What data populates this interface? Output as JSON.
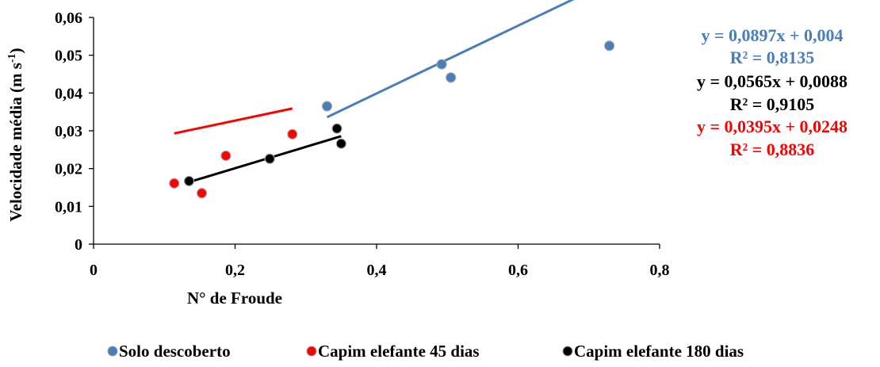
{
  "chart_data": {
    "type": "scatter",
    "xlabel": "N° de Froude",
    "ylabel": "Velocidade média (m s-1)",
    "ylabel_main": "Velocidade média (m s",
    "ylabel_sup": "-1",
    "ylabel_end": ")",
    "xlim": [
      0,
      0.8
    ],
    "ylim": [
      0,
      0.06
    ],
    "x_ticks": [
      "0",
      "0,2",
      "0,4",
      "0,6",
      "0,8"
    ],
    "y_ticks": [
      "0",
      "0,01",
      "0,02",
      "0,03",
      "0,04",
      "0,05",
      "0,06"
    ],
    "grid": false,
    "legend_position": "bottom",
    "series": [
      {
        "name": "Solo descoberto",
        "color": "#4a7ebb",
        "points": [
          [
            0.33,
            0.0365
          ],
          [
            0.492,
            0.0476
          ],
          [
            0.505,
            0.0441
          ],
          [
            0.729,
            0.0525
          ]
        ],
        "trend": {
          "slope": 0.0897,
          "intercept": 0.004,
          "x_range": [
            0.33,
            0.729
          ]
        },
        "equation": "y = 0,0897x + 0,004",
        "r2": "R² = 0,8135"
      },
      {
        "name": "Capim elefante 45 dias",
        "color": "#ff0000",
        "points": [
          [
            0.114,
            0.0161
          ],
          [
            0.153,
            0.0135
          ],
          [
            0.187,
            0.0234
          ],
          [
            0.281,
            0.0291
          ]
        ],
        "trend": {
          "slope": 0.0395,
          "intercept": 0.0248,
          "x_range": [
            0.114,
            0.281
          ]
        },
        "equation": "y = 0,0395x + 0,0248",
        "r2": "R² = 0,8836"
      },
      {
        "name": "Capim elefante 180 dias",
        "color": "#000000",
        "points": [
          [
            0.135,
            0.0167
          ],
          [
            0.249,
            0.0226
          ],
          [
            0.344,
            0.0306
          ],
          [
            0.35,
            0.0266
          ]
        ],
        "trend": {
          "slope": 0.0565,
          "intercept": 0.0088,
          "x_range": [
            0.135,
            0.35
          ]
        },
        "equation": "y = 0,0565x + 0,0088",
        "r2": "R² = 0,9105"
      }
    ]
  }
}
